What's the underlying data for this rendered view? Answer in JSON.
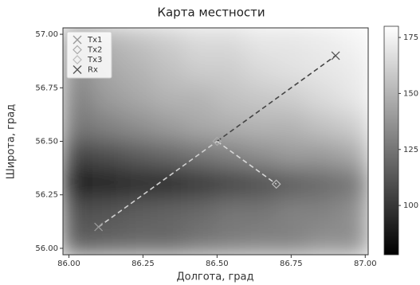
{
  "chart_data": {
    "type": "heatmap",
    "title": "Карта местности",
    "xlabel": "Долгота, град",
    "ylabel": "Широта, град",
    "xlim": [
      85.98,
      87.01
    ],
    "ylim": [
      55.97,
      57.03
    ],
    "xticks": [
      {
        "value": 86.0,
        "label": "86.00"
      },
      {
        "value": 86.25,
        "label": "86.25"
      },
      {
        "value": 86.5,
        "label": "86.50"
      },
      {
        "value": 86.75,
        "label": "86.75"
      },
      {
        "value": 87.0,
        "label": "87.00"
      }
    ],
    "yticks": [
      {
        "value": 56.0,
        "label": "56.00"
      },
      {
        "value": 56.25,
        "label": "56.25"
      },
      {
        "value": 56.5,
        "label": "56.50"
      },
      {
        "value": 56.75,
        "label": "56.75"
      },
      {
        "value": 57.0,
        "label": "57.00"
      }
    ],
    "heatmap": {
      "clim": [
        78,
        180
      ],
      "cticks": [
        100,
        125,
        150,
        175
      ],
      "z": [
        [
          140,
          150,
          155,
          160,
          165,
          165,
          170,
          170,
          172,
          175
        ],
        [
          135,
          145,
          150,
          155,
          160,
          160,
          165,
          168,
          170,
          172
        ],
        [
          130,
          140,
          145,
          150,
          150,
          155,
          158,
          160,
          165,
          170
        ],
        [
          125,
          130,
          135,
          140,
          145,
          148,
          150,
          150,
          155,
          160
        ],
        [
          105,
          110,
          115,
          120,
          125,
          130,
          135,
          140,
          140,
          145
        ],
        [
          90,
          92,
          95,
          95,
          100,
          105,
          110,
          115,
          120,
          125
        ],
        [
          110,
          112,
          115,
          118,
          120,
          125,
          125,
          130,
          130,
          135
        ],
        [
          115,
          118,
          120,
          120,
          125,
          128,
          130,
          130,
          135,
          135
        ]
      ]
    },
    "links": [
      {
        "x": [
          86.1,
          86.5
        ],
        "y": [
          56.1,
          56.5
        ],
        "color": "#d0d0d0"
      },
      {
        "x": [
          86.5,
          86.9
        ],
        "y": [
          56.5,
          56.9
        ],
        "color": "#444444"
      },
      {
        "x": [
          86.5,
          86.7
        ],
        "y": [
          56.5,
          56.3
        ],
        "color": "#d8d8d8"
      }
    ],
    "series": [
      {
        "name": "Tx1",
        "x": [
          86.1
        ],
        "y": [
          56.1
        ],
        "marker": "x",
        "color": "#999999"
      },
      {
        "name": "Tx2",
        "x": [
          86.5
        ],
        "y": [
          56.5
        ],
        "marker": "diamond",
        "color": "#aaaaaa"
      },
      {
        "name": "Tx3",
        "x": [
          86.7
        ],
        "y": [
          56.3
        ],
        "marker": "diamond",
        "color": "#bbbbbb"
      },
      {
        "name": "Rx",
        "x": [
          86.9
        ],
        "y": [
          56.9
        ],
        "marker": "x",
        "color": "#555555"
      }
    ],
    "legend": "upper left"
  }
}
